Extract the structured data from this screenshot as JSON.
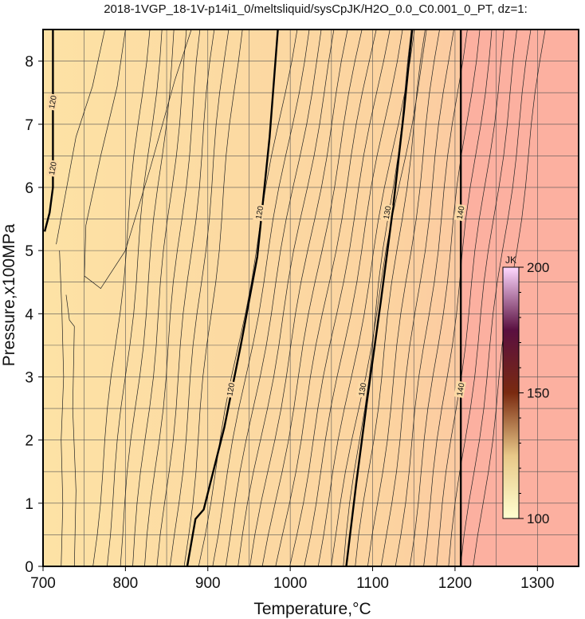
{
  "title": "2018-1VGP_18-1V-p14i1_0/meltsliquid/sysCpJK/H2O_0.0_C0.001_0_PT, dz=1:",
  "chart_data": {
    "type": "heatmap",
    "title": "2018-1VGP_18-1V-p14i1_0/meltsliquid/sysCpJK/H2O_0.0_C0.001_0_PT, dz=1:",
    "xlabel": "Temperature,°C",
    "ylabel": "Pressure,x100MPa",
    "xlim": [
      700,
      1350
    ],
    "ylim": [
      0,
      8.5
    ],
    "xticks": [
      700,
      800,
      900,
      1000,
      1100,
      1200,
      1300
    ],
    "yticks": [
      0,
      1,
      2,
      3,
      4,
      5,
      6,
      7,
      8
    ],
    "grid": true,
    "colorbar": {
      "label": "JK",
      "range": [
        100,
        200
      ],
      "ticks": [
        100,
        150,
        200
      ],
      "colors": [
        "#ffffd0",
        "#e8c888",
        "#7a2a10",
        "#5a1040",
        "#ffd8ff"
      ],
      "placement": "right, inside plot"
    },
    "fill_colors": {
      "low": "#fde2a5",
      "high": "#fcb0a0"
    },
    "major_contours": [
      {
        "level": 120,
        "points": [
          [
            712,
            8.5
          ],
          [
            712,
            6.0
          ],
          [
            708,
            5.6
          ],
          [
            702,
            5.3
          ]
        ]
      },
      {
        "level": 120,
        "points": [
          [
            875,
            0
          ],
          [
            885,
            0.75
          ],
          [
            895,
            0.9
          ],
          [
            920,
            2.2
          ],
          [
            940,
            3.5
          ],
          [
            960,
            4.9
          ],
          [
            975,
            6.8
          ],
          [
            985,
            8.5
          ]
        ]
      },
      {
        "level": 130,
        "points": [
          [
            1068,
            0
          ],
          [
            1080,
            1.3
          ],
          [
            1093,
            2.6
          ],
          [
            1110,
            4.2
          ],
          [
            1125,
            5.7
          ],
          [
            1138,
            7.2
          ],
          [
            1148,
            8.5
          ]
        ]
      },
      {
        "level": 140,
        "points": [
          [
            1207,
            0
          ],
          [
            1207,
            8.5
          ]
        ]
      }
    ],
    "contour_labels": [
      {
        "text": "120",
        "x": 712,
        "y": 7.35
      },
      {
        "text": "120",
        "x": 712,
        "y": 6.3
      },
      {
        "text": "120",
        "x": 963,
        "y": 5.6
      },
      {
        "text": "120",
        "x": 928,
        "y": 2.8
      },
      {
        "text": "130",
        "x": 1118,
        "y": 5.6
      },
      {
        "text": "130",
        "x": 1088,
        "y": 2.8
      },
      {
        "text": "140",
        "x": 1207,
        "y": 5.6
      },
      {
        "text": "140",
        "x": 1207,
        "y": 2.8
      }
    ],
    "minor_contour_count": 30
  }
}
